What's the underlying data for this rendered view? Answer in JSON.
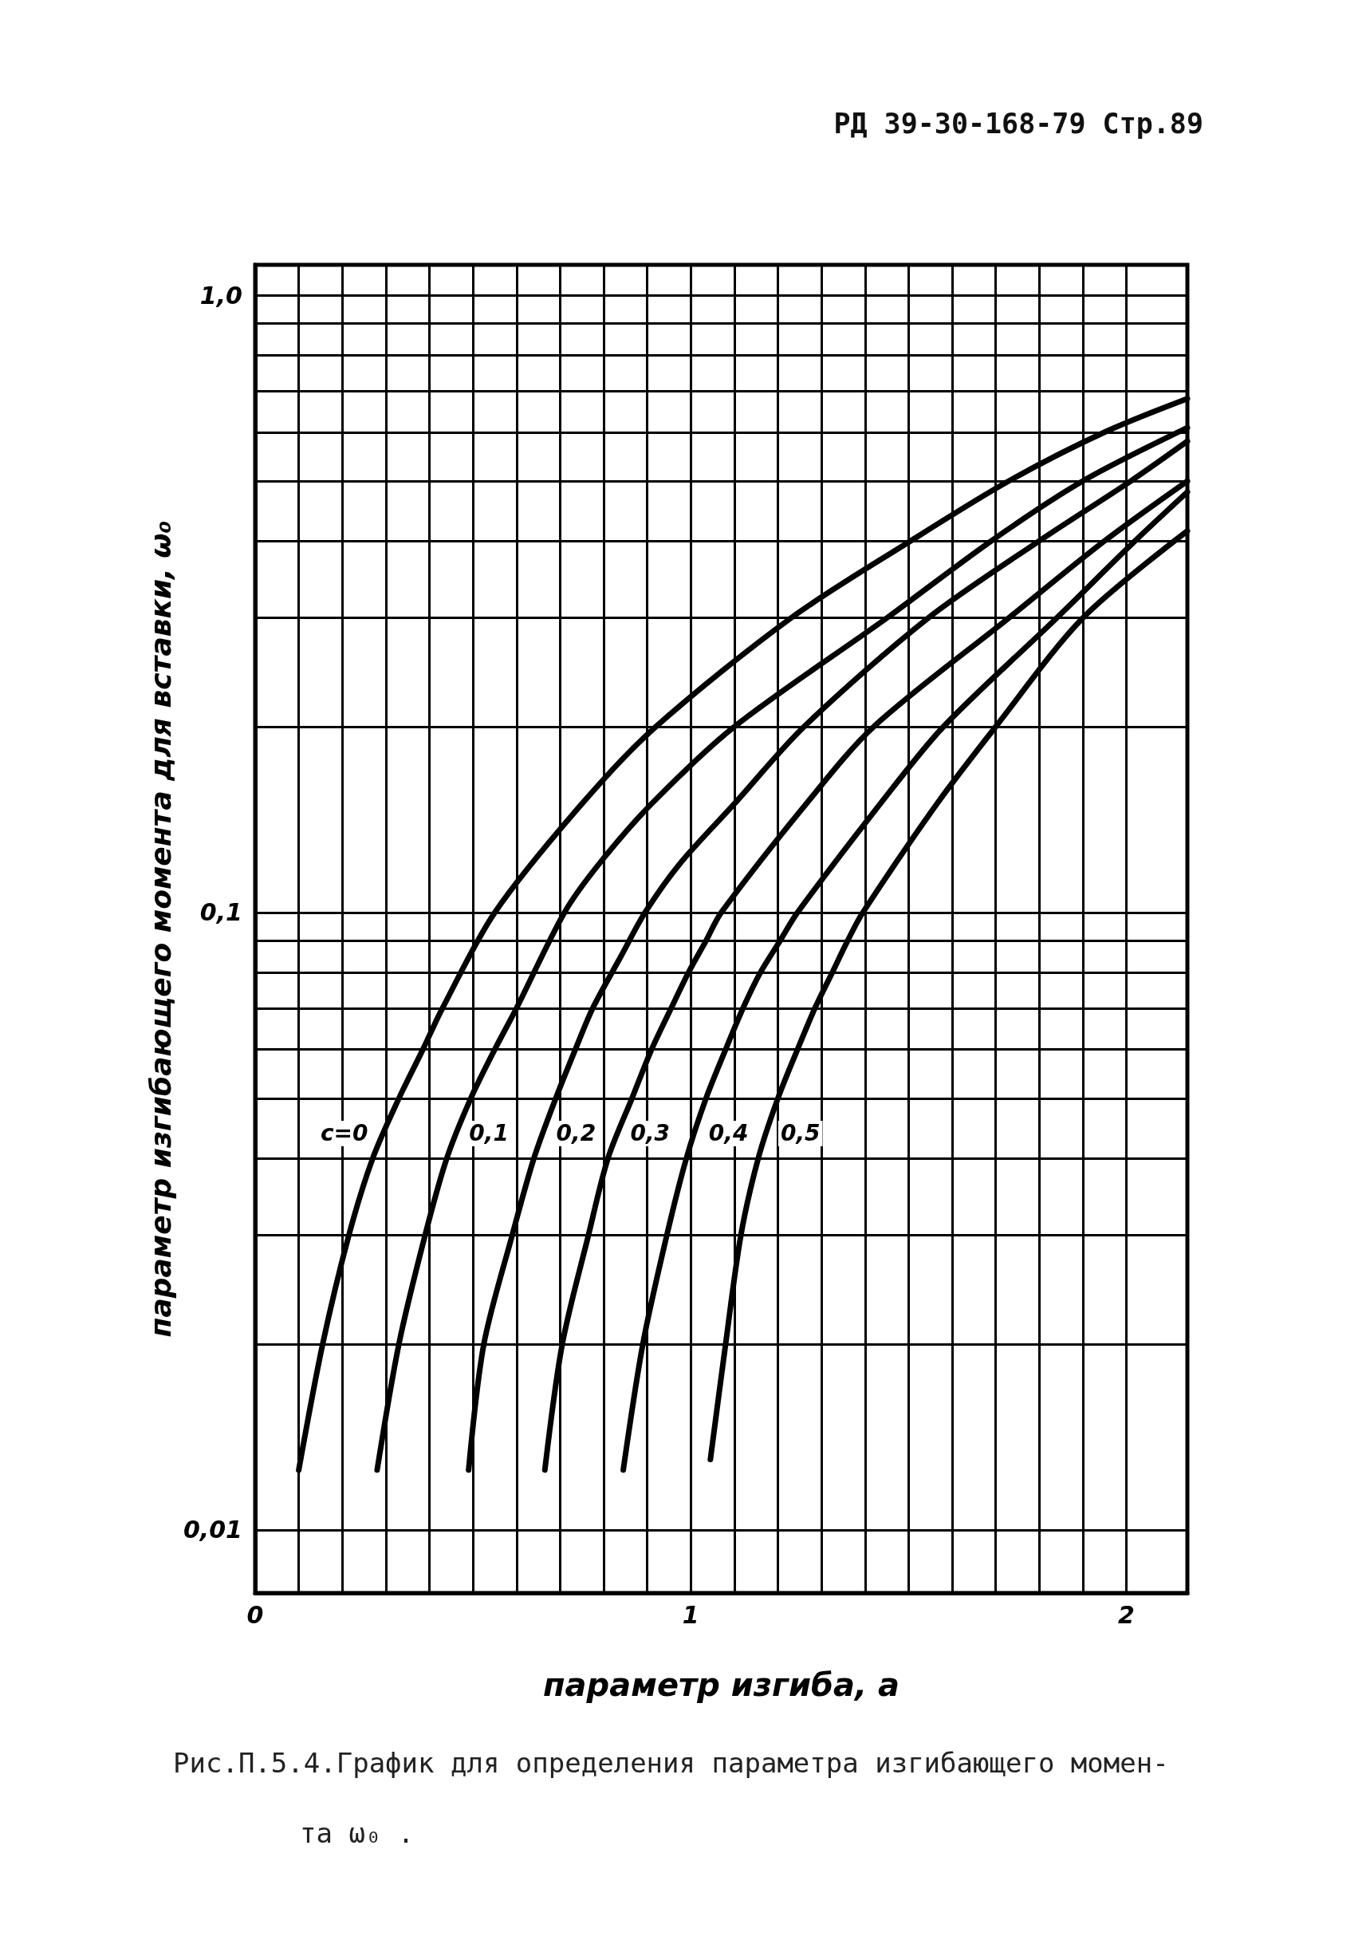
{
  "chart_data": {
    "type": "line",
    "title": "Рис.П.5.4.График для определения параметра изгибающего момен-\nта ω₀ .",
    "annotations": [
      "РД 39-30-168-79 Стр.89"
    ],
    "xlabel": "параметр изгиба, a",
    "ylabel": "параметр изгибающего момента для вставки, ω₀",
    "log": "y",
    "grid": true,
    "xlim": [
      0,
      2.14
    ],
    "ylim": [
      0.0079,
      1.12
    ],
    "xticks": [
      0,
      {
        "value": 0.1,
        "label": null
      },
      {
        "value": 0.2,
        "label": null
      },
      {
        "value": 0.3,
        "label": null
      },
      {
        "value": 0.4,
        "label": null
      },
      {
        "value": 0.5,
        "label": null
      },
      {
        "value": 0.6,
        "label": null
      },
      {
        "value": 0.7,
        "label": null
      },
      {
        "value": 0.8,
        "label": null
      },
      {
        "value": 0.9,
        "label": null
      },
      1,
      {
        "value": 1.1,
        "label": null
      },
      {
        "value": 1.2,
        "label": null
      },
      {
        "value": 1.3,
        "label": null
      },
      {
        "value": 1.4,
        "label": null
      },
      {
        "value": 1.5,
        "label": null
      },
      {
        "value": 1.6,
        "label": null
      },
      {
        "value": 1.7,
        "label": null
      },
      {
        "value": 1.8,
        "label": null
      },
      {
        "value": 1.9,
        "label": null
      },
      2
    ],
    "yticks": [
      {
        "value": 0.01,
        "label": "0,01"
      },
      {
        "value": 0.02,
        "label": null
      },
      {
        "value": 0.03,
        "label": null
      },
      {
        "value": 0.04,
        "label": null
      },
      {
        "value": 0.05,
        "label": null
      },
      {
        "value": 0.06,
        "label": null
      },
      {
        "value": 0.07,
        "label": null
      },
      {
        "value": 0.08,
        "label": null
      },
      {
        "value": 0.09,
        "label": null
      },
      {
        "value": 0.1,
        "label": "0,1"
      },
      {
        "value": 0.2,
        "label": null
      },
      {
        "value": 0.3,
        "label": null
      },
      {
        "value": 0.4,
        "label": null
      },
      {
        "value": 0.5,
        "label": null
      },
      {
        "value": 0.6,
        "label": null
      },
      {
        "value": 0.7,
        "label": null
      },
      {
        "value": 0.8,
        "label": null
      },
      {
        "value": 0.9,
        "label": null
      },
      {
        "value": 1,
        "label": "1,0"
      }
    ],
    "series": [
      {
        "name": "c=0",
        "color": "#000000",
        "x": [
          0.1,
          0.155,
          0.215,
          0.27,
          0.33,
          0.385,
          0.43,
          0.55,
          0.75,
          0.92,
          1.23,
          1.505,
          1.73,
          1.95,
          2.14
        ],
        "values": [
          0.0125,
          0.02,
          0.03,
          0.04,
          0.05,
          0.06,
          0.07,
          0.1,
          0.15,
          0.2,
          0.3,
          0.4,
          0.5,
          0.6,
          0.68
        ]
      },
      {
        "name": "0,1",
        "color": "#000000",
        "x": [
          0.28,
          0.33,
          0.39,
          0.44,
          0.495,
          0.55,
          0.6,
          0.71,
          0.79,
          0.91,
          1.1,
          1.45,
          1.69,
          1.9,
          2.14
        ],
        "values": [
          0.0125,
          0.02,
          0.03,
          0.04,
          0.05,
          0.06,
          0.07,
          0.1,
          0.12,
          0.15,
          0.2,
          0.3,
          0.4,
          0.5,
          0.61
        ]
      },
      {
        "name": "0,2",
        "color": "#000000",
        "x": [
          0.49,
          0.525,
          0.59,
          0.64,
          0.69,
          0.735,
          0.775,
          0.84,
          0.895,
          0.975,
          1.1,
          1.26,
          1.545,
          1.8,
          2.01,
          2.14
        ],
        "values": [
          0.0125,
          0.02,
          0.03,
          0.04,
          0.05,
          0.06,
          0.07,
          0.085,
          0.1,
          0.12,
          0.15,
          0.2,
          0.3,
          0.4,
          0.5,
          0.58
        ]
      },
      {
        "name": "0,3",
        "color": "#000000",
        "x": [
          0.665,
          0.705,
          0.765,
          0.81,
          0.865,
          0.91,
          0.955,
          0.995,
          1.035,
          1.07,
          1.265,
          1.42,
          1.73,
          1.95,
          2.14
        ],
        "values": [
          0.0125,
          0.02,
          0.03,
          0.04,
          0.05,
          0.06,
          0.07,
          0.08,
          0.09,
          0.1,
          0.15,
          0.2,
          0.3,
          0.4,
          0.5
        ]
      },
      {
        "name": "0,4",
        "color": "#000000",
        "x": [
          0.845,
          0.89,
          0.945,
          0.99,
          1.035,
          1.08,
          1.12,
          1.16,
          1.205,
          1.245,
          1.435,
          1.58,
          1.84,
          2.02,
          2.14
        ],
        "values": [
          0.0125,
          0.02,
          0.03,
          0.04,
          0.05,
          0.06,
          0.07,
          0.08,
          0.09,
          0.1,
          0.15,
          0.2,
          0.3,
          0.4,
          0.48
        ]
      },
      {
        "name": "0,5",
        "color": "#000000",
        "x": [
          1.045,
          1.08,
          1.115,
          1.155,
          1.2,
          1.245,
          1.285,
          1.325,
          1.36,
          1.395,
          1.565,
          1.7,
          1.9,
          2.14
        ],
        "values": [
          0.013,
          0.02,
          0.03,
          0.04,
          0.05,
          0.06,
          0.07,
          0.08,
          0.09,
          0.1,
          0.15,
          0.2,
          0.3,
          0.415
        ]
      }
    ]
  }
}
